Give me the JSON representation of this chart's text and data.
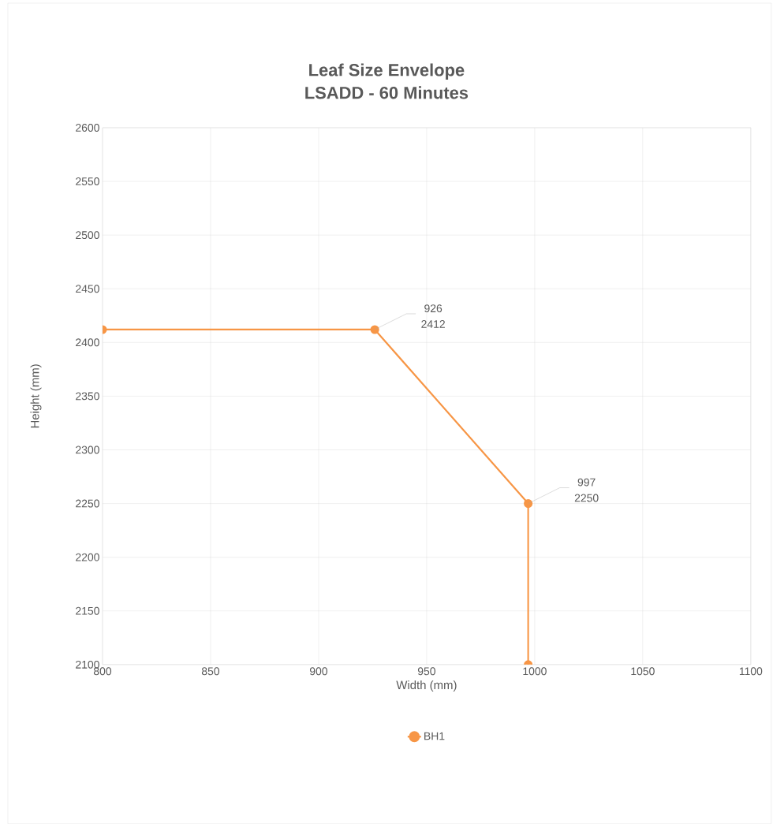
{
  "chart_data": {
    "type": "line",
    "title": "Leaf Size Envelope",
    "subtitle": "LSADD - 60 Minutes",
    "xlabel": "Width (mm)",
    "ylabel": "Height (mm)",
    "series": [
      {
        "name": "BH1",
        "color": "#f79646",
        "x": [
          800,
          926,
          997,
          997
        ],
        "values": [
          2412,
          2412,
          2250,
          2100
        ],
        "value_labels": [
          null,
          "926 2412",
          "997 2250",
          null
        ]
      }
    ],
    "xlim": [
      800,
      1100
    ],
    "xticks": [
      800,
      850,
      900,
      950,
      1000,
      1050,
      1100
    ],
    "ylim": [
      2100,
      2600
    ],
    "yticks": [
      2100,
      2150,
      2200,
      2250,
      2300,
      2350,
      2400,
      2450,
      2500,
      2550,
      2600
    ],
    "grid": true,
    "legend": "bottom",
    "marker": "circle",
    "line_style": "solid"
  }
}
